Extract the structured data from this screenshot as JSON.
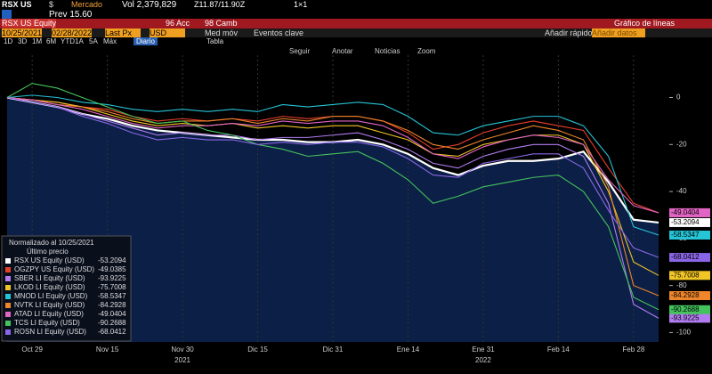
{
  "header": {
    "ticker": "RSX US",
    "currency": "$",
    "market": "Mercado",
    "prev": "Prev 15.60",
    "volume": "Vol 2,379,829",
    "quote": "Z11.87/11.90Z",
    "size": "1×1"
  },
  "toolbar": {
    "security": "RSX US Equity",
    "actions": "96 Acc",
    "change": "98 Camb",
    "view": "Gráfico de líneas",
    "start_date": "10/25/2021",
    "end_date": "02/28/2022",
    "field": "Last Px",
    "ccy": "USD",
    "moving_avg": "Med móv",
    "events": "Eventos clave",
    "quick_add": "Añadir rápido",
    "add_data": "Añadir datos",
    "periods": [
      "1D",
      "3D",
      "1M",
      "6M",
      "YTD",
      "1A",
      "5A",
      "Máx"
    ],
    "frequency": "Diario",
    "table": "Tabla",
    "tools": [
      "Seguir",
      "Anotar",
      "Noticias",
      "Zoom"
    ]
  },
  "chart_data": {
    "type": "line",
    "legend_title": "Normalizado al 10/25/2021",
    "legend_subtitle": "Último precio",
    "categories": [
      null,
      "Oct 29",
      null,
      null,
      "Nov 15",
      null,
      null,
      "Nov 30",
      null,
      null,
      "Dic 15",
      null,
      null,
      "Dic 31",
      null,
      null,
      "Ene 14",
      null,
      null,
      "Ene 31",
      null,
      null,
      "Feb 14",
      null,
      null,
      "Feb 28",
      null
    ],
    "years": [
      {
        "index": 7,
        "label": "2021"
      },
      {
        "index": 19,
        "label": "2022"
      }
    ],
    "ylim": [
      -104,
      18
    ],
    "yticks": [
      0,
      -20,
      -40,
      -60,
      -80,
      -100
    ],
    "area_series": 0,
    "area_color": "#0c1f46",
    "series": [
      {
        "name": "RSX US Equity (USD)",
        "color": "#ffffff",
        "values": [
          0,
          -2,
          -4,
          -7,
          -9,
          -12,
          -14,
          -15,
          -16,
          -17,
          -18,
          -18,
          -19,
          -19,
          -18,
          -20,
          -24,
          -30,
          -33,
          -29,
          -27,
          -27,
          -26,
          -23,
          -36,
          -52,
          -53.2094
        ]
      },
      {
        "name": "OGZPY US Equity (USD)",
        "color": "#e8402a",
        "values": [
          0,
          -1,
          -2,
          -4,
          -5,
          -8,
          -10,
          -9,
          -10,
          -9,
          -10,
          -8,
          -9,
          -8,
          -8,
          -10,
          -15,
          -22,
          -20,
          -15,
          -12,
          -10,
          -12,
          -14,
          -30,
          -45,
          -49.0385
        ]
      },
      {
        "name": "SBER LI Equity (USD)",
        "color": "#b27cf0",
        "values": [
          0,
          -2,
          -4,
          -7,
          -10,
          -13,
          -16,
          -15,
          -16,
          -16,
          -18,
          -17,
          -17,
          -16,
          -15,
          -18,
          -22,
          -28,
          -30,
          -25,
          -22,
          -20,
          -20,
          -25,
          -45,
          -88,
          -93.9225
        ]
      },
      {
        "name": "LKOD LI Equity (USD)",
        "color": "#f2c526",
        "values": [
          0,
          -1,
          -2,
          -4,
          -7,
          -10,
          -12,
          -11,
          -12,
          -11,
          -13,
          -12,
          -13,
          -12,
          -12,
          -15,
          -18,
          -24,
          -25,
          -20,
          -18,
          -16,
          -16,
          -20,
          -40,
          -70,
          -75.7008
        ]
      },
      {
        "name": "MNOD LI Equity (USD)",
        "color": "#25c4d6",
        "values": [
          0,
          1,
          0,
          -2,
          -3,
          -5,
          -6,
          -5,
          -6,
          -5,
          -6,
          -3,
          -4,
          -3,
          -2,
          -3,
          -8,
          -15,
          -16,
          -12,
          -10,
          -8,
          -8,
          -12,
          -25,
          -55,
          -58.5347
        ]
      },
      {
        "name": "NVTK LI Equity (USD)",
        "color": "#f0862a",
        "values": [
          0,
          -1,
          -3,
          -4,
          -6,
          -9,
          -11,
          -10,
          -10,
          -9,
          -11,
          -9,
          -10,
          -8,
          -8,
          -10,
          -14,
          -20,
          -22,
          -18,
          -15,
          -12,
          -14,
          -18,
          -38,
          -80,
          -84.2928
        ]
      },
      {
        "name": "ATAD LI Equity (USD)",
        "color": "#e264c4",
        "values": [
          0,
          -1,
          -3,
          -5,
          -8,
          -11,
          -13,
          -12,
          -12,
          -11,
          -12,
          -10,
          -11,
          -10,
          -10,
          -12,
          -17,
          -24,
          -26,
          -21,
          -18,
          -16,
          -17,
          -20,
          -35,
          -46,
          -49.0404
        ]
      },
      {
        "name": "TCS LI Equity (USD)",
        "color": "#44c25c",
        "values": [
          0,
          6,
          4,
          0,
          -4,
          -8,
          -11,
          -10,
          -14,
          -16,
          -20,
          -22,
          -25,
          -24,
          -23,
          -28,
          -35,
          -45,
          -42,
          -38,
          -36,
          -34,
          -33,
          -40,
          -55,
          -85,
          -90.2688
        ]
      },
      {
        "name": "ROSN LI Equity (USD)",
        "color": "#8a66e6",
        "values": [
          0,
          -2,
          -4,
          -8,
          -11,
          -15,
          -18,
          -17,
          -18,
          -18,
          -20,
          -19,
          -20,
          -19,
          -19,
          -21,
          -26,
          -33,
          -34,
          -28,
          -26,
          -24,
          -24,
          -30,
          -48,
          -64,
          -68.0412
        ]
      }
    ]
  }
}
